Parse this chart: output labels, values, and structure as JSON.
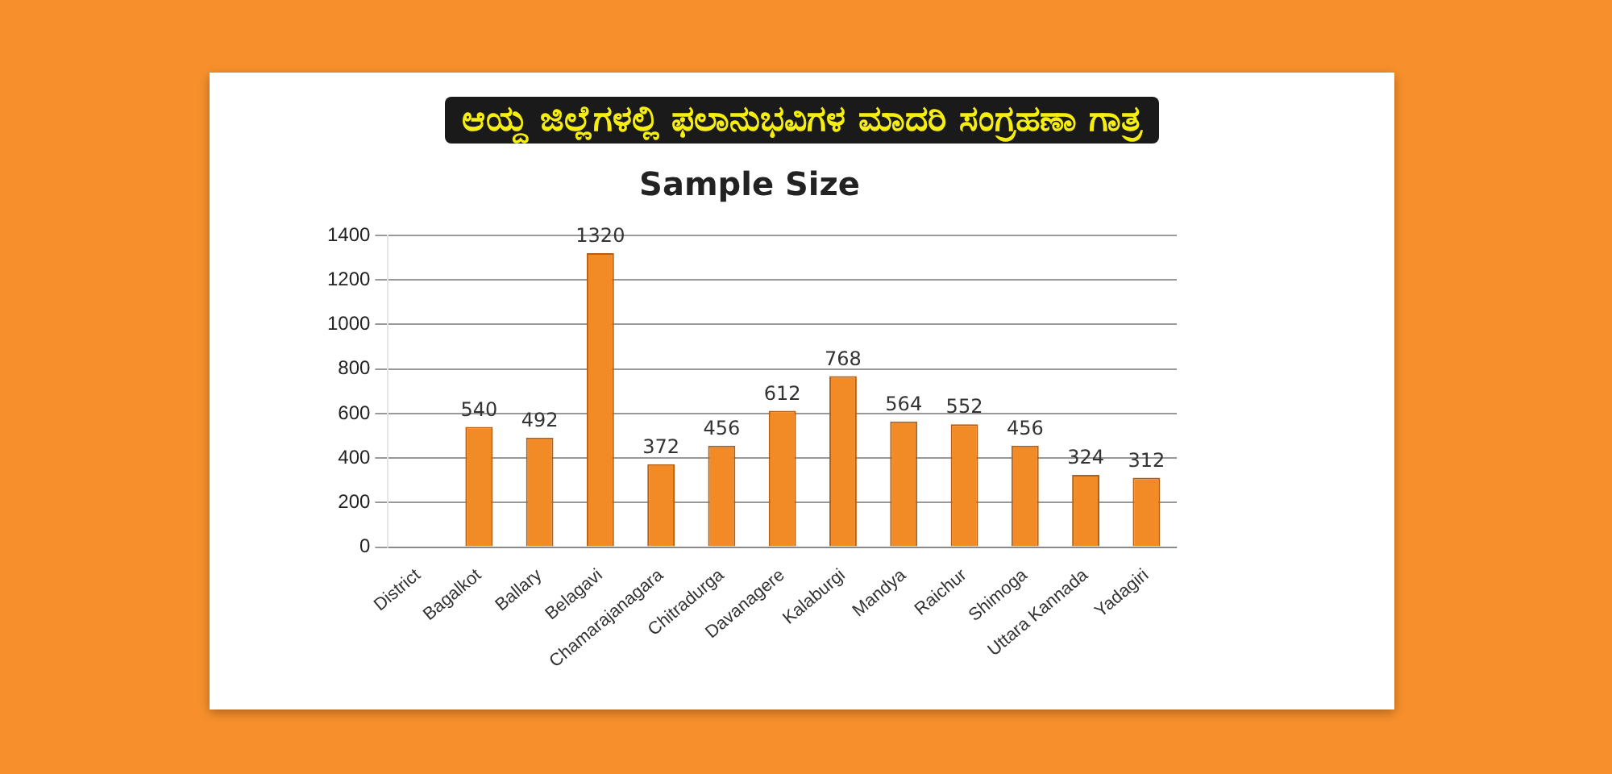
{
  "chart_data": {
    "type": "bar",
    "title": "ಆಯ್ದ ಜಿಲ್ಲೆಗಳಲ್ಲಿ ಫಲಾನುಭವಿಗಳ ಮಾದರಿ ಸಂಗ್ರಹಣಾ ಗಾತ್ರ",
    "subtitle": "Sample Size",
    "categories": [
      "District",
      "Bagalkot",
      "Ballary",
      "Belagavi",
      "Chamarajanagara",
      "Chitradurga",
      "Davanagere",
      "Kalaburgi",
      "Mandya",
      "Raichur",
      "Shimoga",
      "Uttara Kannada",
      "Yadagiri"
    ],
    "values": [
      null,
      540,
      492,
      1320,
      372,
      456,
      612,
      768,
      564,
      552,
      456,
      324,
      312
    ],
    "color": "#f28a26",
    "ylim": [
      0,
      1400
    ],
    "yticks": [
      0,
      200,
      400,
      600,
      800,
      1000,
      1200,
      1400
    ],
    "grid": "y",
    "data_labels": true,
    "legend": false
  }
}
